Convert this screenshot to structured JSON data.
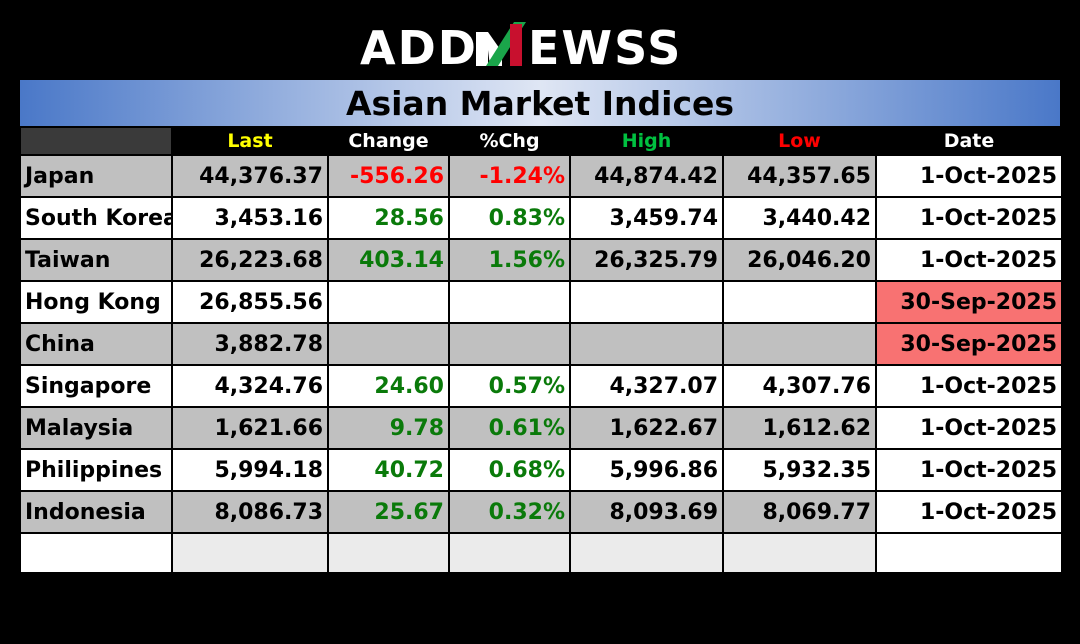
{
  "logo": {
    "text_left": "ADD",
    "text_n": "N",
    "text_right": "EWSS"
  },
  "title": "Asian Market Indices",
  "columns": {
    "last": "Last",
    "change": "Change",
    "pct": "%Chg",
    "high": "High",
    "low": "Low",
    "date": "Date"
  },
  "colors": {
    "last_header": "#ffff00",
    "high_header": "#00c040",
    "low_header": "#ff0000",
    "negative": "#ff0000",
    "positive": "#0a7a0a",
    "stale_date": "#f87272"
  },
  "rows": [
    {
      "country": "Japan",
      "last": "44,376.37",
      "change": "-556.26",
      "pct": "-1.24%",
      "high": "44,874.42",
      "low": "44,357.65",
      "date": "1-Oct-2025"
    },
    {
      "country": "South Korea",
      "last": "3,453.16",
      "change": "28.56",
      "pct": "0.83%",
      "high": "3,459.74",
      "low": "3,440.42",
      "date": "1-Oct-2025"
    },
    {
      "country": "Taiwan",
      "last": "26,223.68",
      "change": "403.14",
      "pct": "1.56%",
      "high": "26,325.79",
      "low": "26,046.20",
      "date": "1-Oct-2025"
    },
    {
      "country": "Hong Kong",
      "last": "26,855.56",
      "change": "",
      "pct": "",
      "high": "",
      "low": "",
      "date": "30-Sep-2025"
    },
    {
      "country": "China",
      "last": "3,882.78",
      "change": "",
      "pct": "",
      "high": "",
      "low": "",
      "date": "30-Sep-2025"
    },
    {
      "country": "Singapore",
      "last": "4,324.76",
      "change": "24.60",
      "pct": "0.57%",
      "high": "4,327.07",
      "low": "4,307.76",
      "date": "1-Oct-2025"
    },
    {
      "country": "Malaysia",
      "last": "1,621.66",
      "change": "9.78",
      "pct": "0.61%",
      "high": "1,622.67",
      "low": "1,612.62",
      "date": "1-Oct-2025"
    },
    {
      "country": "Philippines",
      "last": "5,994.18",
      "change": "40.72",
      "pct": "0.68%",
      "high": "5,996.86",
      "low": "5,932.35",
      "date": "1-Oct-2025"
    },
    {
      "country": "Indonesia",
      "last": "8,086.73",
      "change": "25.67",
      "pct": "0.32%",
      "high": "8,093.69",
      "low": "8,069.77",
      "date": "1-Oct-2025"
    }
  ]
}
